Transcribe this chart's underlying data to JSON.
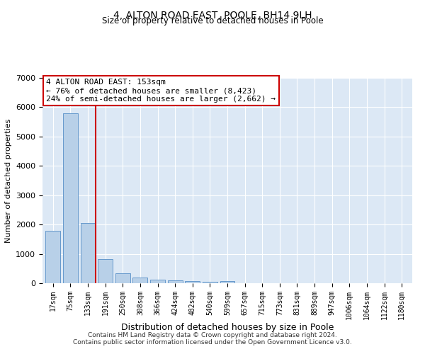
{
  "title": "4, ALTON ROAD EAST, POOLE, BH14 9LH",
  "subtitle": "Size of property relative to detached houses in Poole",
  "xlabel": "Distribution of detached houses by size in Poole",
  "ylabel": "Number of detached properties",
  "bar_color": "#b8d0e8",
  "bar_edge_color": "#6699cc",
  "background_color": "#dce8f5",
  "grid_color": "#ffffff",
  "categories": [
    "17sqm",
    "75sqm",
    "133sqm",
    "191sqm",
    "250sqm",
    "308sqm",
    "366sqm",
    "424sqm",
    "482sqm",
    "540sqm",
    "599sqm",
    "657sqm",
    "715sqm",
    "773sqm",
    "831sqm",
    "889sqm",
    "947sqm",
    "1006sqm",
    "1064sqm",
    "1122sqm",
    "1180sqm"
  ],
  "values": [
    1780,
    5800,
    2060,
    820,
    340,
    190,
    115,
    95,
    80,
    55,
    70,
    0,
    0,
    0,
    0,
    0,
    0,
    0,
    0,
    0,
    0
  ],
  "annotation_text": "4 ALTON ROAD EAST: 153sqm\n← 76% of detached houses are smaller (8,423)\n24% of semi-detached houses are larger (2,662) →",
  "vline_x": 2.45,
  "vline_color": "#cc0000",
  "annotation_box_edge_color": "#cc0000",
  "footnote1": "Contains HM Land Registry data © Crown copyright and database right 2024.",
  "footnote2": "Contains public sector information licensed under the Open Government Licence v3.0.",
  "ylim": [
    0,
    7000
  ],
  "yticks": [
    0,
    1000,
    2000,
    3000,
    4000,
    5000,
    6000,
    7000
  ]
}
